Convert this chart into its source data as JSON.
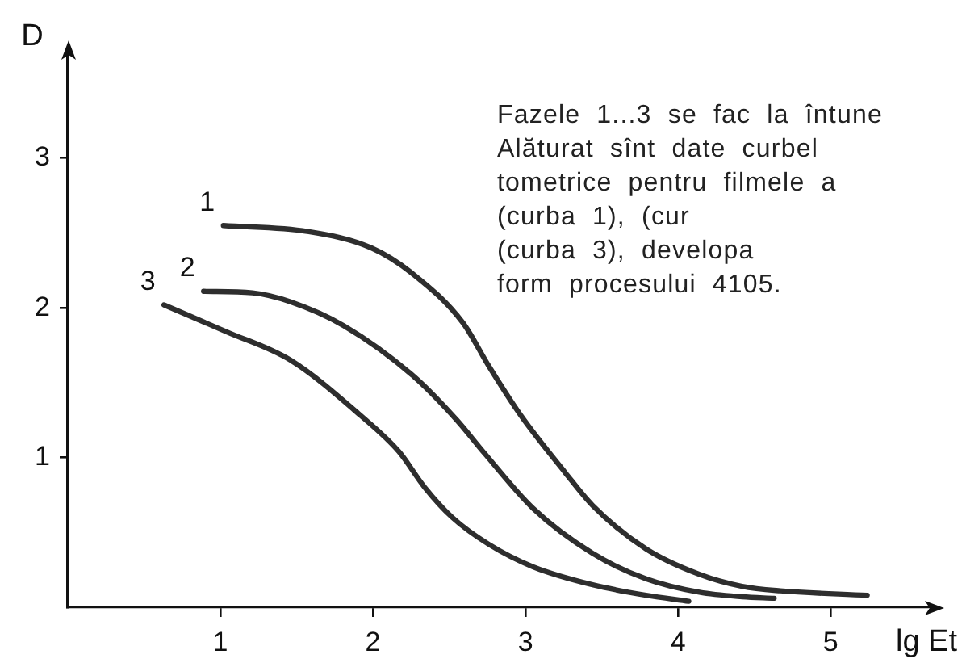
{
  "chart_data": {
    "type": "line",
    "xlabel": "lg Et",
    "ylabel": "D",
    "xlim": [
      0,
      5.66
    ],
    "ylim": [
      0,
      3.7
    ],
    "xticks": [
      1,
      2,
      3,
      4,
      5
    ],
    "yticks": [
      1,
      2,
      3
    ],
    "grid": false,
    "legend": false,
    "marker": "none",
    "annotations": [
      "Fazele 1...3 se fac la întune",
      "Alăturat sînt date curbel",
      "tometrice pentru filmele a",
      "(curba 1), (cur",
      "(curba 3), developa",
      "form procesului 4105."
    ],
    "series": [
      {
        "name": "1",
        "color": "#2e2e2e",
        "x": [
          1.02,
          1.57,
          1.99,
          2.27,
          2.59,
          2.76,
          2.97,
          3.26,
          3.44,
          3.79,
          4.14,
          4.42,
          4.67,
          5.24
        ],
        "values": [
          2.55,
          2.51,
          2.4,
          2.22,
          1.9,
          1.61,
          1.28,
          0.9,
          0.68,
          0.39,
          0.22,
          0.14,
          0.11,
          0.08
        ]
      },
      {
        "name": "2",
        "color": "#2e2e2e",
        "x": [
          0.89,
          1.21,
          1.46,
          1.81,
          2.27,
          2.55,
          2.73,
          3.05,
          3.44,
          3.79,
          4.14,
          4.42,
          4.63
        ],
        "values": [
          2.11,
          2.1,
          2.04,
          1.88,
          1.54,
          1.25,
          1.03,
          0.66,
          0.36,
          0.19,
          0.1,
          0.07,
          0.06
        ]
      },
      {
        "name": "3",
        "color": "#2e2e2e",
        "x": [
          0.63,
          1.04,
          1.46,
          1.92,
          2.17,
          2.34,
          2.52,
          2.76,
          3.05,
          3.44,
          3.79,
          4.07
        ],
        "values": [
          2.02,
          1.84,
          1.65,
          1.28,
          1.04,
          0.8,
          0.6,
          0.42,
          0.27,
          0.15,
          0.08,
          0.04
        ]
      }
    ]
  }
}
